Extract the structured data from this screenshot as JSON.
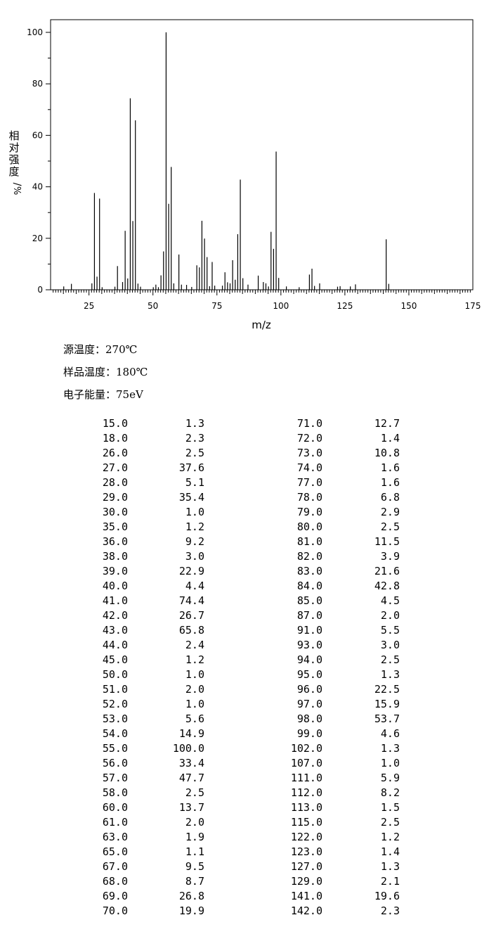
{
  "chart_data": {
    "type": "bar",
    "xlabel": "m/z",
    "ylabel": "相对强度/%",
    "xlim": [
      10,
      175
    ],
    "ylim": [
      0,
      100
    ],
    "x_ticks": [
      "25",
      "50",
      "75",
      "100",
      "125",
      "150",
      "175"
    ],
    "y_ticks": [
      "0",
      "20",
      "40",
      "60",
      "80",
      "100"
    ],
    "peaks": [
      [
        15,
        1.3
      ],
      [
        18,
        2.3
      ],
      [
        26,
        2.5
      ],
      [
        27,
        37.6
      ],
      [
        28,
        5.1
      ],
      [
        29,
        35.4
      ],
      [
        30,
        1.0
      ],
      [
        35,
        1.2
      ],
      [
        36,
        9.2
      ],
      [
        38,
        3.0
      ],
      [
        39,
        22.9
      ],
      [
        40,
        4.4
      ],
      [
        41,
        74.4
      ],
      [
        42,
        26.7
      ],
      [
        43,
        65.8
      ],
      [
        44,
        2.4
      ],
      [
        45,
        1.2
      ],
      [
        50,
        1.0
      ],
      [
        51,
        2.0
      ],
      [
        52,
        1.0
      ],
      [
        53,
        5.6
      ],
      [
        54,
        14.9
      ],
      [
        55,
        100.0
      ],
      [
        56,
        33.4
      ],
      [
        57,
        47.7
      ],
      [
        58,
        2.5
      ],
      [
        60,
        13.7
      ],
      [
        61,
        2.0
      ],
      [
        63,
        1.9
      ],
      [
        65,
        1.1
      ],
      [
        67,
        9.5
      ],
      [
        68,
        8.7
      ],
      [
        69,
        26.8
      ],
      [
        70,
        19.9
      ],
      [
        71,
        12.7
      ],
      [
        72,
        1.4
      ],
      [
        73,
        10.8
      ],
      [
        74,
        1.6
      ],
      [
        77,
        1.6
      ],
      [
        78,
        6.8
      ],
      [
        79,
        2.9
      ],
      [
        80,
        2.5
      ],
      [
        81,
        11.5
      ],
      [
        82,
        3.9
      ],
      [
        83,
        21.6
      ],
      [
        84,
        42.8
      ],
      [
        85,
        4.5
      ],
      [
        87,
        2.0
      ],
      [
        91,
        5.5
      ],
      [
        93,
        3.0
      ],
      [
        94,
        2.5
      ],
      [
        95,
        1.3
      ],
      [
        96,
        22.5
      ],
      [
        97,
        15.9
      ],
      [
        98,
        53.7
      ],
      [
        99,
        4.6
      ],
      [
        102,
        1.3
      ],
      [
        107,
        1.0
      ],
      [
        111,
        5.9
      ],
      [
        112,
        8.2
      ],
      [
        113,
        1.5
      ],
      [
        115,
        2.5
      ],
      [
        122,
        1.2
      ],
      [
        123,
        1.4
      ],
      [
        127,
        1.3
      ],
      [
        129,
        2.1
      ],
      [
        141,
        19.6
      ],
      [
        142,
        2.3
      ]
    ]
  },
  "conditions": {
    "source_temp": "源温度：270℃",
    "sample_temp": "样品温度：180℃",
    "electron_energy": "电子能量：75eV"
  },
  "table": {
    "left": [
      [
        "15.0",
        "1.3"
      ],
      [
        "18.0",
        "2.3"
      ],
      [
        "26.0",
        "2.5"
      ],
      [
        "27.0",
        "37.6"
      ],
      [
        "28.0",
        "5.1"
      ],
      [
        "29.0",
        "35.4"
      ],
      [
        "30.0",
        "1.0"
      ],
      [
        "35.0",
        "1.2"
      ],
      [
        "36.0",
        "9.2"
      ],
      [
        "38.0",
        "3.0"
      ],
      [
        "39.0",
        "22.9"
      ],
      [
        "40.0",
        "4.4"
      ],
      [
        "41.0",
        "74.4"
      ],
      [
        "42.0",
        "26.7"
      ],
      [
        "43.0",
        "65.8"
      ],
      [
        "44.0",
        "2.4"
      ],
      [
        "45.0",
        "1.2"
      ],
      [
        "50.0",
        "1.0"
      ],
      [
        "51.0",
        "2.0"
      ],
      [
        "52.0",
        "1.0"
      ],
      [
        "53.0",
        "5.6"
      ],
      [
        "54.0",
        "14.9"
      ],
      [
        "55.0",
        "100.0"
      ],
      [
        "56.0",
        "33.4"
      ],
      [
        "57.0",
        "47.7"
      ],
      [
        "58.0",
        "2.5"
      ],
      [
        "60.0",
        "13.7"
      ],
      [
        "61.0",
        "2.0"
      ],
      [
        "63.0",
        "1.9"
      ],
      [
        "65.0",
        "1.1"
      ],
      [
        "67.0",
        "9.5"
      ],
      [
        "68.0",
        "8.7"
      ],
      [
        "69.0",
        "26.8"
      ],
      [
        "70.0",
        "19.9"
      ]
    ],
    "right": [
      [
        "71.0",
        "12.7"
      ],
      [
        "72.0",
        "1.4"
      ],
      [
        "73.0",
        "10.8"
      ],
      [
        "74.0",
        "1.6"
      ],
      [
        "77.0",
        "1.6"
      ],
      [
        "78.0",
        "6.8"
      ],
      [
        "79.0",
        "2.9"
      ],
      [
        "80.0",
        "2.5"
      ],
      [
        "81.0",
        "11.5"
      ],
      [
        "82.0",
        "3.9"
      ],
      [
        "83.0",
        "21.6"
      ],
      [
        "84.0",
        "42.8"
      ],
      [
        "85.0",
        "4.5"
      ],
      [
        "87.0",
        "2.0"
      ],
      [
        "91.0",
        "5.5"
      ],
      [
        "93.0",
        "3.0"
      ],
      [
        "94.0",
        "2.5"
      ],
      [
        "95.0",
        "1.3"
      ],
      [
        "96.0",
        "22.5"
      ],
      [
        "97.0",
        "15.9"
      ],
      [
        "98.0",
        "53.7"
      ],
      [
        "99.0",
        "4.6"
      ],
      [
        "102.0",
        "1.3"
      ],
      [
        "107.0",
        "1.0"
      ],
      [
        "111.0",
        "5.9"
      ],
      [
        "112.0",
        "8.2"
      ],
      [
        "113.0",
        "1.5"
      ],
      [
        "115.0",
        "2.5"
      ],
      [
        "122.0",
        "1.2"
      ],
      [
        "123.0",
        "1.4"
      ],
      [
        "127.0",
        "1.3"
      ],
      [
        "129.0",
        "2.1"
      ],
      [
        "141.0",
        "19.6"
      ],
      [
        "142.0",
        "2.3"
      ]
    ]
  }
}
